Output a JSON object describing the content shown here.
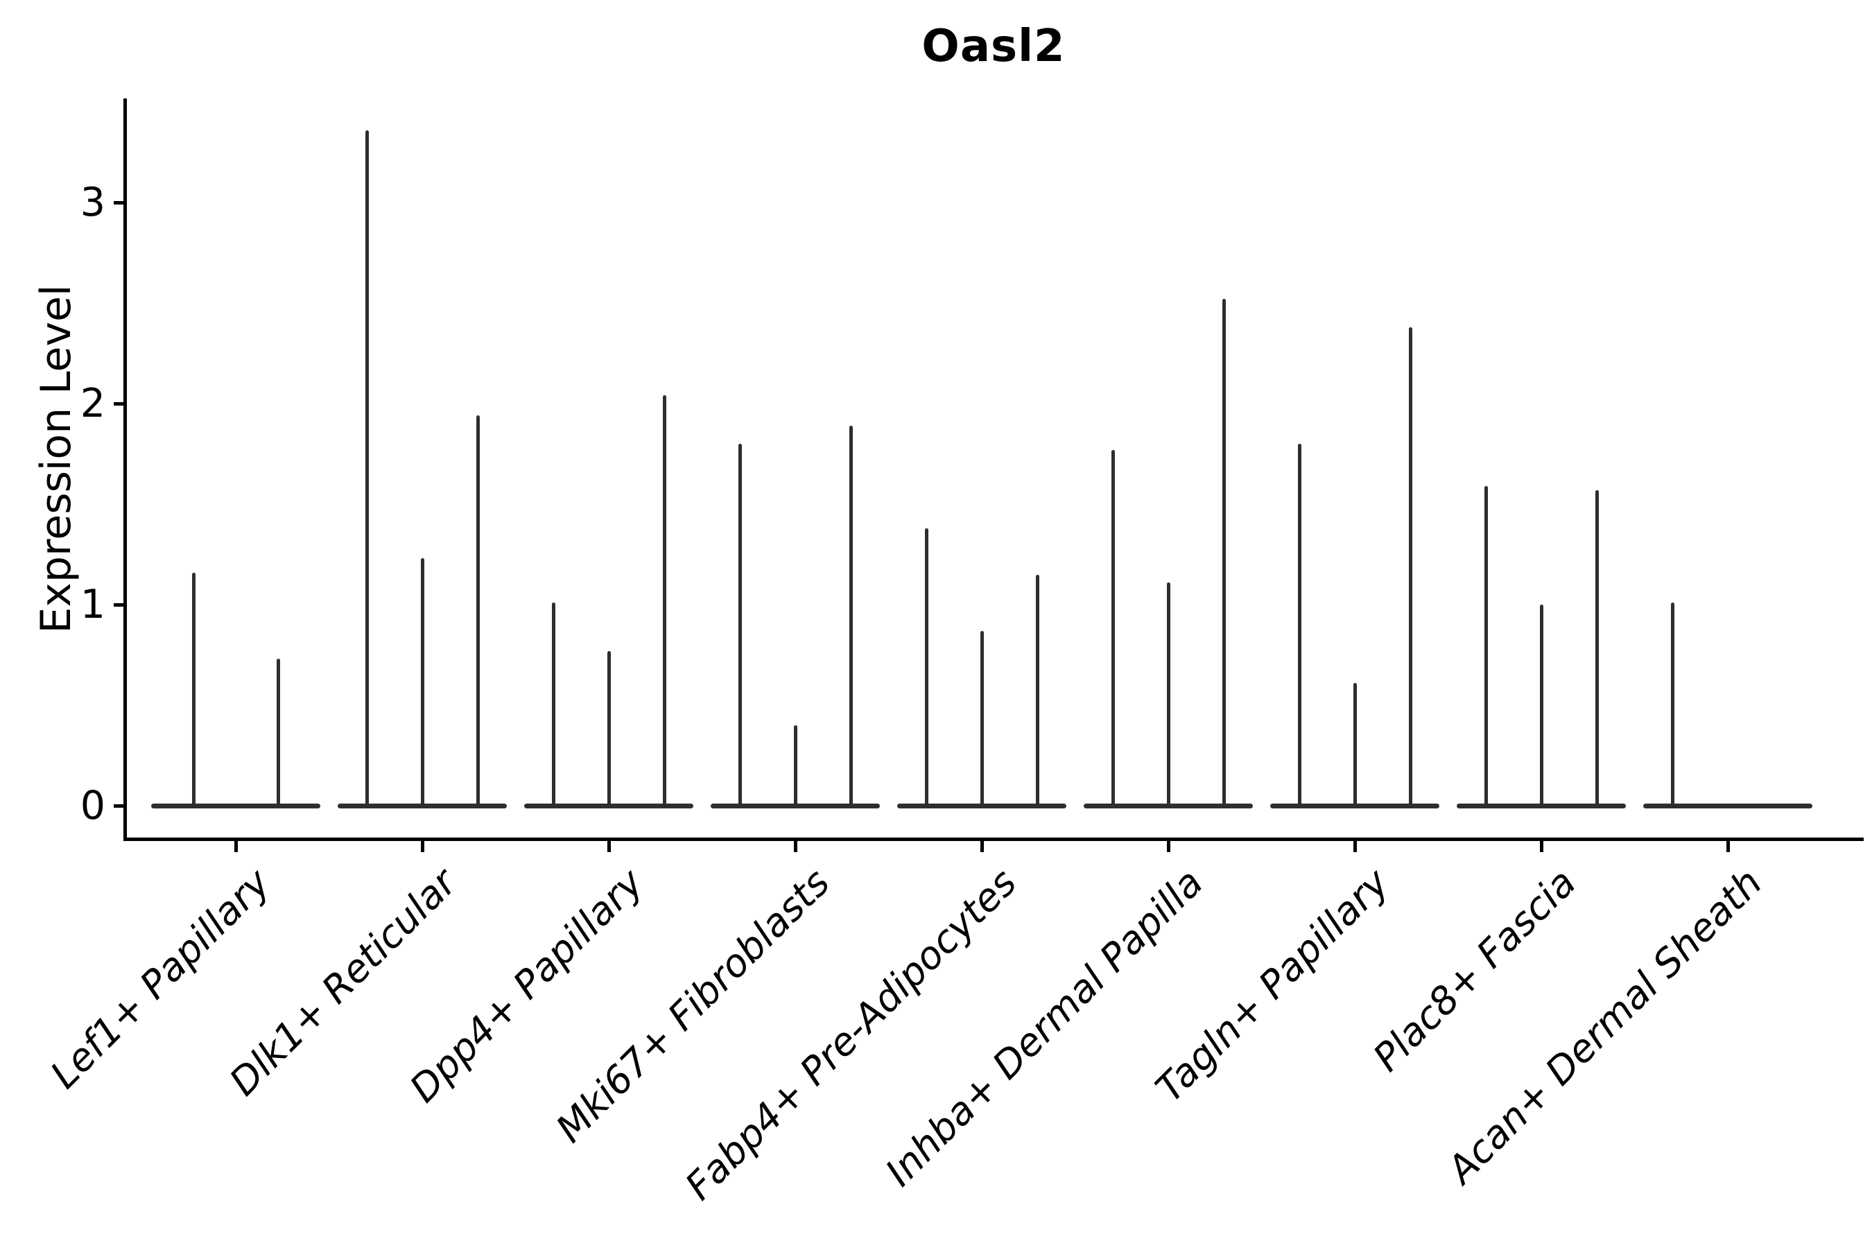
{
  "chart_data": {
    "type": "violin",
    "title": "Oasl2",
    "xlabel": "",
    "ylabel": "Expression Level",
    "ytick_labels": [
      "0",
      "1",
      "2",
      "3"
    ],
    "yticks": [
      0,
      1,
      2,
      3
    ],
    "ylim": [
      -0.17,
      3.52
    ],
    "grid": false,
    "legend": "none",
    "xtick_rotation_deg": 45,
    "violin_color": "#2e2e2e",
    "axis_color": "#000000",
    "categories": [
      "Lef1+ Papillary",
      "Dlk1+ Reticular",
      "Dpp4+ Papillary",
      "Mki67+ Fibroblasts",
      "Fabp4+ Pre-Adipocytes",
      "Inhba+ Dermal Papilla",
      "Tagln+ Papillary",
      "Plac8+ Fascia",
      "Acan+ Dermal Sheath"
    ],
    "groups": [
      {
        "category": "Lef1+ Papillary",
        "spike_max_expression": [
          1.16,
          0.73
        ]
      },
      {
        "category": "Dlk1+ Reticular",
        "spike_max_expression": [
          3.36,
          1.23,
          1.94
        ]
      },
      {
        "category": "Dpp4+ Papillary",
        "spike_max_expression": [
          1.01,
          0.77,
          2.04
        ]
      },
      {
        "category": "Mki67+ Fibroblasts",
        "spike_max_expression": [
          1.8,
          0.4,
          1.89
        ]
      },
      {
        "category": "Fabp4+ Pre-Adipocytes",
        "spike_max_expression": [
          1.38,
          0.87,
          1.15
        ]
      },
      {
        "category": "Inhba+ Dermal Papilla",
        "spike_max_expression": [
          1.77,
          1.11,
          2.52
        ]
      },
      {
        "category": "Tagln+ Papillary",
        "spike_max_expression": [
          1.8,
          0.61,
          2.38
        ]
      },
      {
        "category": "Plac8+ Fascia",
        "spike_max_expression": [
          1.59,
          1.0,
          1.57
        ]
      },
      {
        "category": "Acan+ Dermal Sheath",
        "spike_max_expression": [
          1.01,
          0,
          0
        ]
      }
    ],
    "note": "Violin plot of zero-inflated expression: each violin collapses to a flat bar at 0 with a thin density spike reaching the listed maximum expression value."
  }
}
